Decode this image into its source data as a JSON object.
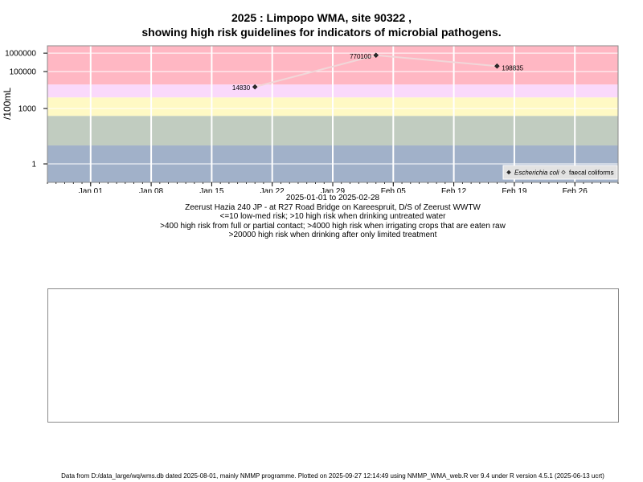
{
  "chart_data": {
    "type": "scatter",
    "title": "2025 : Limpopo WMA, site 90322 ,",
    "subtitle": "showing high risk guidelines for indicators of microbial pathogens.",
    "ylabel": "/100mL",
    "y_scale": "log10",
    "ylim": [
      0.1,
      2500000
    ],
    "x_range": [
      "2024-12-27",
      "2025-03-03"
    ],
    "x_ticks": [
      {
        "date": "2025-01-01",
        "label": "Jan 01"
      },
      {
        "date": "2025-01-08",
        "label": "Jan 08"
      },
      {
        "date": "2025-01-15",
        "label": "Jan 15"
      },
      {
        "date": "2025-01-22",
        "label": "Jan 22"
      },
      {
        "date": "2025-01-29",
        "label": "Jan 29"
      },
      {
        "date": "2025-02-05",
        "label": "Feb 05"
      },
      {
        "date": "2025-02-12",
        "label": "Feb 12"
      },
      {
        "date": "2025-02-19",
        "label": "Feb 19"
      },
      {
        "date": "2025-02-26",
        "label": "Feb 26"
      }
    ],
    "y_ticks": [
      {
        "value": 1000000,
        "label": "1000000"
      },
      {
        "value": 100000,
        "label": "100000"
      },
      {
        "value": 1000,
        "label": "1000"
      },
      {
        "value": 1,
        "label": "1"
      }
    ],
    "bands": [
      {
        "from": 0.1,
        "to": 10,
        "color": "#a1b1c9"
      },
      {
        "from": 10,
        "to": 400,
        "color": "#c1ccc0"
      },
      {
        "from": 400,
        "to": 4000,
        "color": "#fff9c4"
      },
      {
        "from": 4000,
        "to": 20000,
        "color": "#fad9fb"
      },
      {
        "from": 20000,
        "to": 2500000,
        "color": "#ffb7c3"
      }
    ],
    "series": [
      {
        "name": "Escherichia coli",
        "marker": "filled-diamond",
        "color": "#2a2a2a",
        "line_color": "#f1d7d9",
        "points": [
          {
            "date": "2025-01-20",
            "value": 14830,
            "label": "14830"
          },
          {
            "date": "2025-02-03",
            "value": 770100,
            "label": "770100"
          },
          {
            "date": "2025-02-17",
            "value": 198835,
            "label": "198835"
          }
        ]
      },
      {
        "name": "faecal coliforms",
        "marker": "open-diamond",
        "color": "#444444",
        "points": []
      }
    ],
    "legend_placement": "bottom-right",
    "grid": true,
    "xlabel_lines": [
      "2025-01-01 to 2025-02-28",
      "Zeerust Hazia 240 JP - at R27 Road Bridge on Kareespruit, D/S of Zeerust WWTW",
      "<=10 low-med risk; >10 high risk when drinking untreated water",
      ">400 high risk from full or partial contact; >4000 high risk when irrigating crops that are eaten raw",
      ">20000 high risk when drinking after only limited treatment"
    ]
  },
  "footer": "Data from D:/data_large/wq/wms.db dated 2025-08-01, mainly NMMP programme. Plotted on 2025-09-27 12:14:49 using NMMP_WMA_web.R ver 9.4 under R version 4.5.1 (2025-06-13 ucrt)"
}
